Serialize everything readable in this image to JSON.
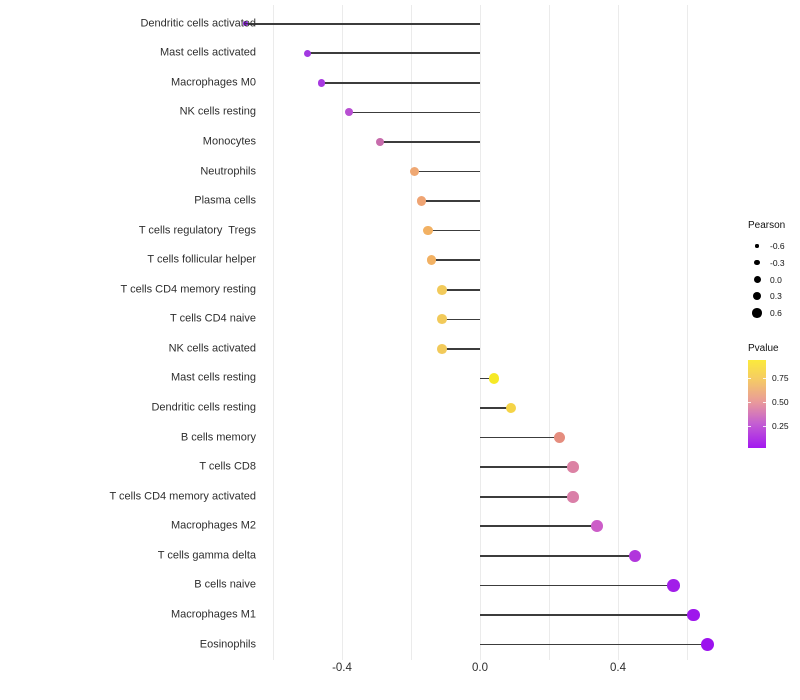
{
  "chart_data": {
    "type": "lollipop",
    "title": "",
    "xlabel": "",
    "ylabel": "",
    "x_axis": {
      "range": [
        -0.72,
        0.72
      ],
      "ticks": [
        {
          "value": -0.4,
          "label": "-0.4"
        },
        {
          "value": 0.0,
          "label": "0.0"
        },
        {
          "value": 0.4,
          "label": "0.4"
        }
      ],
      "gridline_values": [
        -0.6,
        -0.4,
        -0.2,
        0.0,
        0.2,
        0.4,
        0.6
      ]
    },
    "rows": [
      {
        "label": "Dendritic cells activated",
        "pearson": -0.68,
        "color": "#9222E6"
      },
      {
        "label": "Mast cells activated",
        "pearson": -0.5,
        "color": "#A339E2"
      },
      {
        "label": "Macrophages M0",
        "pearson": -0.46,
        "color": "#A839E1"
      },
      {
        "label": "NK cells resting",
        "pearson": -0.38,
        "color": "#B84FD2"
      },
      {
        "label": "Monocytes",
        "pearson": -0.29,
        "color": "#C76CAC"
      },
      {
        "label": "Neutrophils",
        "pearson": -0.19,
        "color": "#EFA873"
      },
      {
        "label": "Plasma cells",
        "pearson": -0.17,
        "color": "#EFA473"
      },
      {
        "label": "T cells regulatory  Tregs",
        "pearson": -0.15,
        "color": "#F2B163"
      },
      {
        "label": "T cells follicular helper",
        "pearson": -0.14,
        "color": "#F2B163"
      },
      {
        "label": "T cells CD4 memory resting",
        "pearson": -0.11,
        "color": "#F2CA5A"
      },
      {
        "label": "T cells CD4 naive",
        "pearson": -0.11,
        "color": "#F2CA5A"
      },
      {
        "label": "NK cells activated",
        "pearson": -0.11,
        "color": "#F2CA5A"
      },
      {
        "label": "Mast cells resting",
        "pearson": 0.04,
        "color": "#F6E926"
      },
      {
        "label": "Dendritic cells resting",
        "pearson": 0.09,
        "color": "#F5D447"
      },
      {
        "label": "B cells memory",
        "pearson": 0.23,
        "color": "#E58D7E"
      },
      {
        "label": "T cells CD8",
        "pearson": 0.27,
        "color": "#DC82A4"
      },
      {
        "label": "T cells CD4 memory activated",
        "pearson": 0.27,
        "color": "#DA7FA8"
      },
      {
        "label": "Macrophages M2",
        "pearson": 0.34,
        "color": "#CC5DC8"
      },
      {
        "label": "T cells gamma delta",
        "pearson": 0.45,
        "color": "#B136DC"
      },
      {
        "label": "B cells naive",
        "pearson": 0.56,
        "color": "#A21EE9"
      },
      {
        "label": "Macrophages M1",
        "pearson": 0.62,
        "color": "#9E17EC"
      },
      {
        "label": "Eosinophils",
        "pearson": 0.66,
        "color": "#9C12EE"
      }
    ],
    "size_legend": {
      "title": "Pearson",
      "dot_color": "#000000",
      "entries": [
        {
          "label": "-0.6",
          "diameter": 3.4
        },
        {
          "label": "-0.3",
          "diameter": 5.4
        },
        {
          "label": "0.0",
          "diameter": 7.0
        },
        {
          "label": "0.3",
          "diameter": 8.2
        },
        {
          "label": "0.6",
          "diameter": 9.4
        }
      ]
    },
    "color_legend": {
      "title": "Pvalue",
      "tick_labels": [
        "0.75",
        "0.50",
        "0.25"
      ],
      "gradient_stops_bottom_to_top": [
        "#A318F0",
        "#C45FD2",
        "#E9999B",
        "#F5CB65",
        "#FBEA3C"
      ]
    },
    "layout": {
      "legend_position": "right",
      "grid": "vertical light gray, every 0.2",
      "stick_color": "#3C3C3C",
      "background": "#FFFFFF"
    }
  }
}
